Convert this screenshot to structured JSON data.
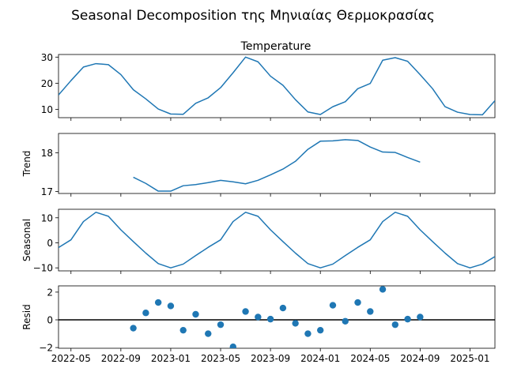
{
  "chart_data": {
    "type": "line",
    "title": "Seasonal Decomposition της Μηνιαίας Θερμοκρασίας",
    "subtitle": "Temperature",
    "x": [
      "2022-04",
      "2022-05",
      "2022-06",
      "2022-07",
      "2022-08",
      "2022-09",
      "2022-10",
      "2022-11",
      "2022-12",
      "2023-01",
      "2023-02",
      "2023-03",
      "2023-04",
      "2023-05",
      "2023-06",
      "2023-07",
      "2023-08",
      "2023-09",
      "2023-10",
      "2023-11",
      "2023-12",
      "2024-01",
      "2024-02",
      "2024-03",
      "2024-04",
      "2024-05",
      "2024-06",
      "2024-07",
      "2024-08",
      "2024-09",
      "2024-10",
      "2024-11",
      "2024-12",
      "2025-01",
      "2025-02",
      "2025-03"
    ],
    "x_ticks": [
      "2022-05",
      "2022-09",
      "2023-01",
      "2023-05",
      "2023-09",
      "2024-01",
      "2024-05",
      "2024-09",
      "2025-01"
    ],
    "panels": [
      {
        "ylabel": "",
        "type": "line",
        "ylim": [
          6.8,
          31.0
        ],
        "yticks": [
          "10",
          "20",
          "30"
        ],
        "ytick_values": [
          10,
          20,
          30
        ],
        "values": [
          15.5,
          21.0,
          26.2,
          27.5,
          27.1,
          23.3,
          17.5,
          14.0,
          10.1,
          8.2,
          8.1,
          12.3,
          14.4,
          18.3,
          24.0,
          30.0,
          28.2,
          22.7,
          19.2,
          13.7,
          9.0,
          8.0,
          11.0,
          12.9,
          17.9,
          19.9,
          28.8,
          29.8,
          28.4,
          23.3,
          17.9,
          11.0,
          8.9,
          8.0,
          7.9,
          13.3
        ]
      },
      {
        "ylabel": "Trend",
        "type": "line",
        "ylim": [
          16.95,
          18.5
        ],
        "yticks": [
          "17",
          "18"
        ],
        "ytick_values": [
          17,
          18
        ],
        "values": [
          null,
          null,
          null,
          null,
          null,
          null,
          17.37,
          17.21,
          17.01,
          17.01,
          17.15,
          17.18,
          17.23,
          17.29,
          17.25,
          17.2,
          17.29,
          17.43,
          17.58,
          17.78,
          18.09,
          18.3,
          18.31,
          18.34,
          18.32,
          18.15,
          18.02,
          18.01,
          17.88,
          17.76,
          null,
          null,
          null,
          null,
          null,
          null
        ]
      },
      {
        "ylabel": "Seasonal",
        "type": "line",
        "ylim": [
          -11.2,
          13.4
        ],
        "yticks": [
          "−10",
          "0",
          "10"
        ],
        "ytick_values": [
          -10,
          0,
          10
        ],
        "values": [
          -1.9,
          1.2,
          8.5,
          12.2,
          10.6,
          5.2,
          0.5,
          -4.1,
          -8.3,
          -10.0,
          -8.5,
          -5.1,
          -1.8,
          1.2,
          8.5,
          12.2,
          10.6,
          5.2,
          0.5,
          -4.1,
          -8.3,
          -10.0,
          -8.5,
          -5.1,
          -1.8,
          1.2,
          8.5,
          12.2,
          10.6,
          5.2,
          0.5,
          -4.1,
          -8.3,
          -10.0,
          -8.5,
          -5.5
        ]
      },
      {
        "ylabel": "Resid",
        "type": "scatter",
        "ylim": [
          -2.05,
          2.45
        ],
        "yticks": [
          "−2",
          "0",
          "2"
        ],
        "ytick_values": [
          -2,
          0,
          2
        ],
        "baseline": 0,
        "values": [
          null,
          null,
          null,
          null,
          null,
          null,
          -0.6,
          0.5,
          1.25,
          1.0,
          -0.75,
          0.4,
          -1.0,
          -0.35,
          -1.95,
          0.6,
          0.2,
          0.05,
          0.85,
          -0.25,
          -1.0,
          -0.75,
          1.05,
          -0.1,
          1.25,
          0.6,
          2.2,
          -0.35,
          0.05,
          0.2,
          null,
          null,
          null,
          null,
          null,
          null
        ]
      }
    ],
    "colors": {
      "line": "#1f77b4",
      "marker": "#1f77b4",
      "baseline": "#000000",
      "axes": "#000000"
    },
    "grid": false,
    "legend": "none"
  }
}
